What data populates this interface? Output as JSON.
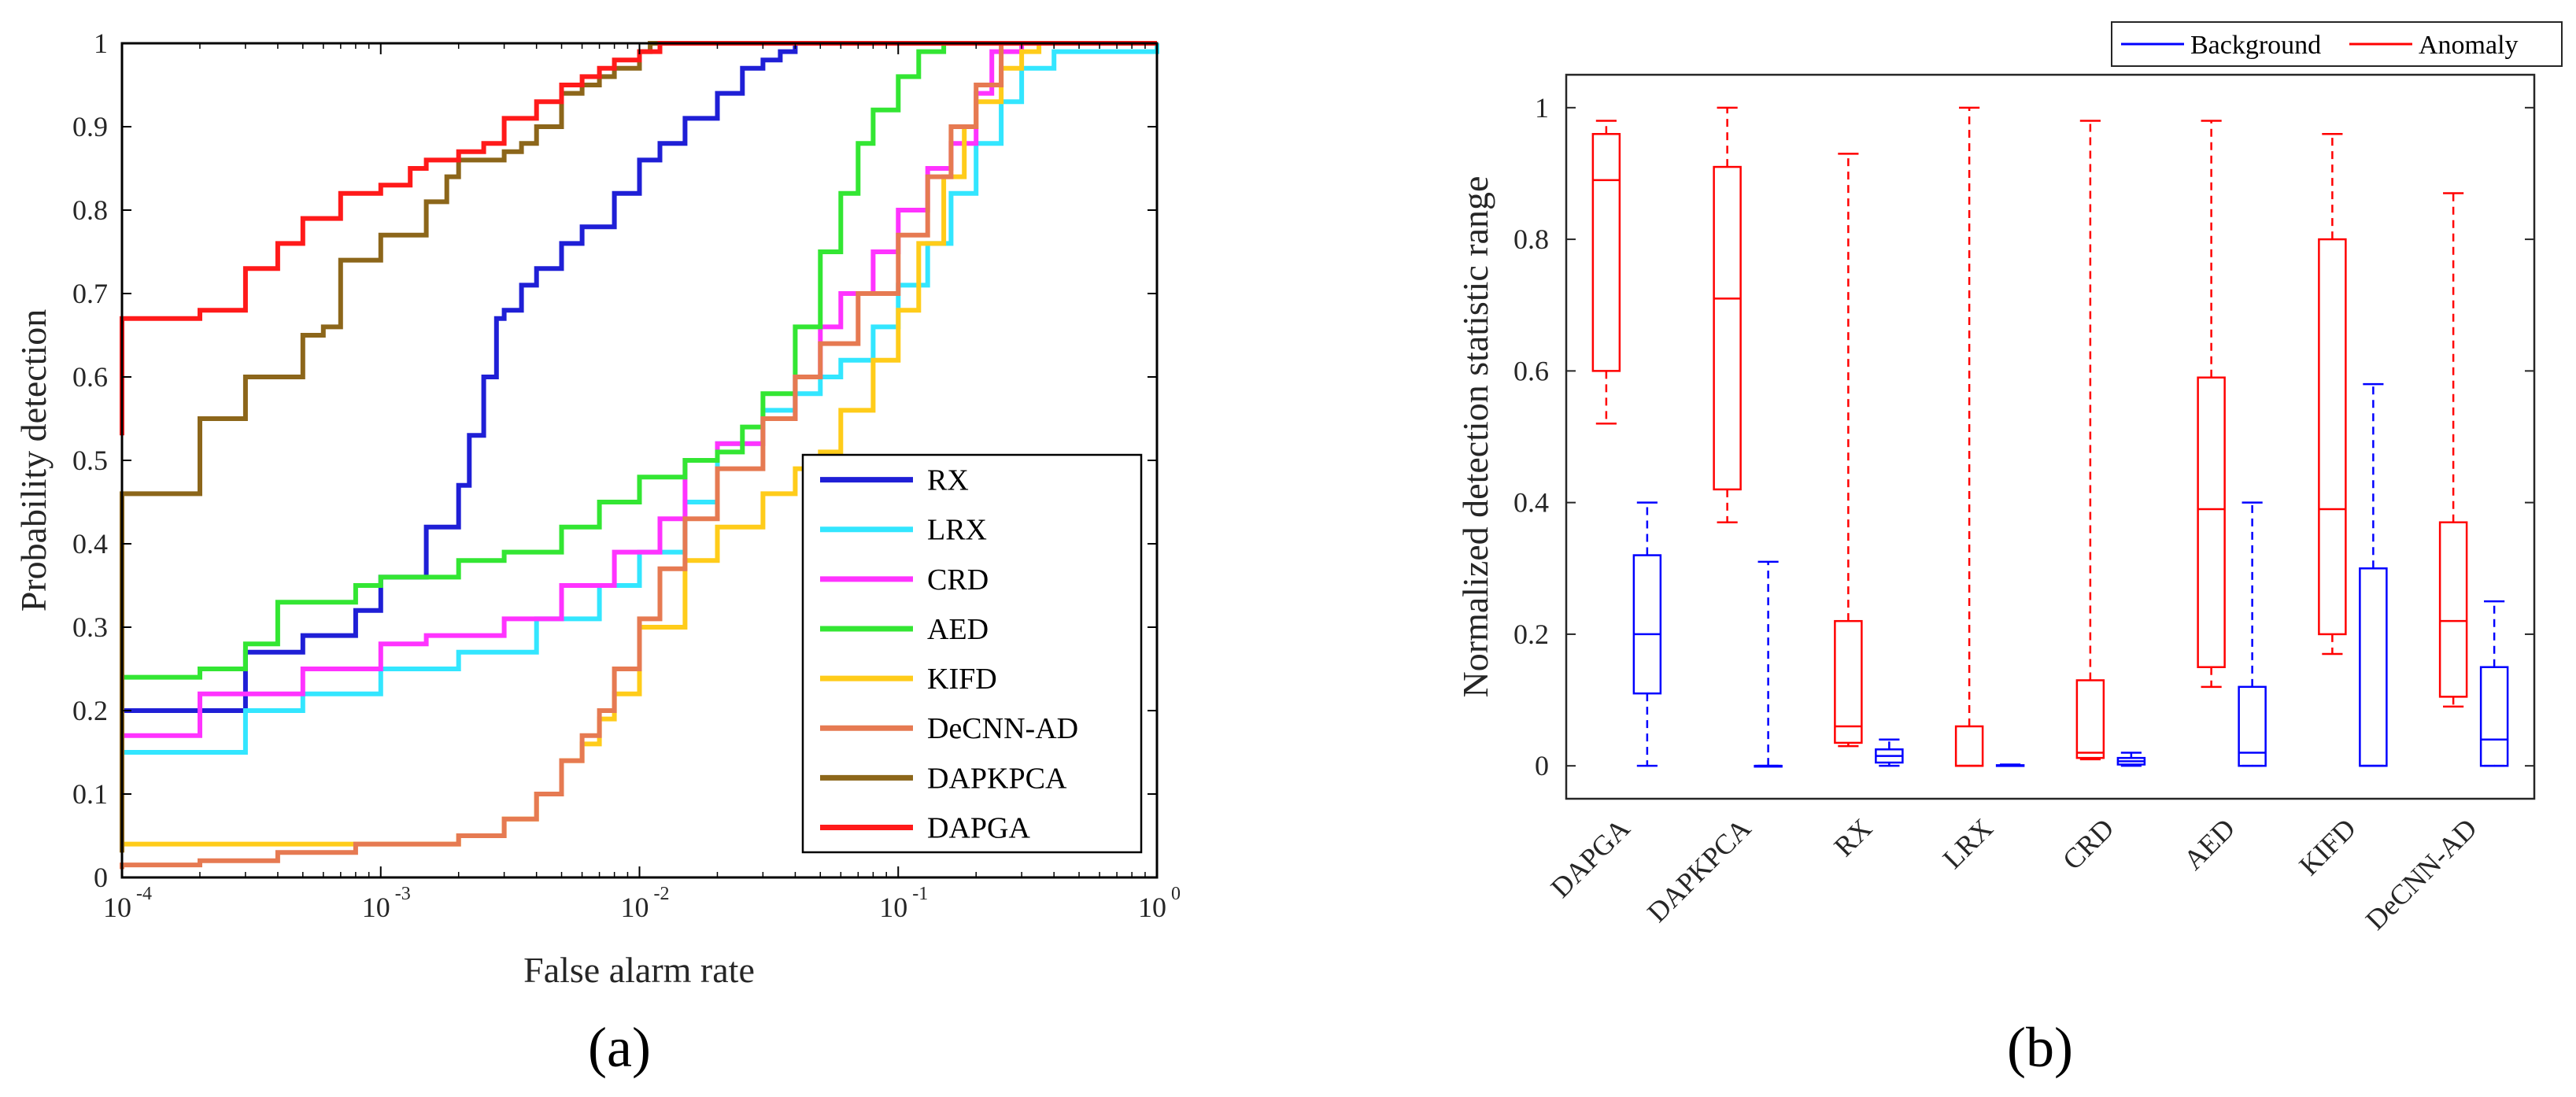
{
  "panels": {
    "a_label": "(a)",
    "b_label": "(b)"
  },
  "chart_data": [
    {
      "type": "line",
      "panel": "a",
      "xlabel": "False alarm rate",
      "ylabel": "Probability detection",
      "xscale": "log",
      "xlim": [
        0.0001,
        1
      ],
      "ylim": [
        0,
        1
      ],
      "xtick_labels": [
        "10",
        "10",
        "10",
        "10",
        "10"
      ],
      "xtick_exponents": [
        "-4",
        "-3",
        "-2",
        "-1",
        "0"
      ],
      "ytick_labels": [
        "0",
        "0.1",
        "0.2",
        "0.3",
        "0.4",
        "0.5",
        "0.6",
        "0.7",
        "0.8",
        "0.9",
        "1"
      ],
      "legend_position": "lower-right",
      "series": [
        {
          "name": "RX",
          "color": "#1f1fd6",
          "x": [
            0.0001,
            0.0001,
            0.0002,
            0.0003,
            0.0003,
            0.0005,
            0.0008,
            0.001,
            0.0015,
            0.002,
            0.0022,
            0.0025,
            0.0028,
            0.003,
            0.0035,
            0.004,
            0.005,
            0.006,
            0.008,
            0.01,
            0.012,
            0.015,
            0.02,
            0.025,
            0.03,
            0.035,
            0.04
          ],
          "y": [
            0.03,
            0.2,
            0.2,
            0.27,
            0.27,
            0.29,
            0.32,
            0.36,
            0.42,
            0.47,
            0.53,
            0.6,
            0.67,
            0.68,
            0.71,
            0.73,
            0.76,
            0.78,
            0.82,
            0.86,
            0.88,
            0.91,
            0.94,
            0.97,
            0.98,
            0.99,
            1.0
          ]
        },
        {
          "name": "LRX",
          "color": "#33e6ff",
          "x": [
            0.0001,
            0.0001,
            0.0003,
            0.0003,
            0.0005,
            0.001,
            0.002,
            0.004,
            0.007,
            0.01,
            0.015,
            0.02,
            0.03,
            0.04,
            0.05,
            0.06,
            0.08,
            0.1,
            0.13,
            0.16,
            0.2,
            0.25,
            0.3,
            0.4,
            0.5,
            0.8,
            1.0
          ],
          "y": [
            0.13,
            0.15,
            0.15,
            0.2,
            0.22,
            0.25,
            0.27,
            0.31,
            0.35,
            0.39,
            0.45,
            0.52,
            0.56,
            0.58,
            0.6,
            0.62,
            0.66,
            0.71,
            0.76,
            0.82,
            0.88,
            0.93,
            0.97,
            0.99,
            0.99,
            0.99,
            1.0
          ]
        },
        {
          "name": "CRD",
          "color": "#ff33ff",
          "x": [
            0.0001,
            0.0001,
            0.0002,
            0.0002,
            0.0005,
            0.001,
            0.0015,
            0.003,
            0.005,
            0.008,
            0.012,
            0.015,
            0.02,
            0.03,
            0.04,
            0.05,
            0.06,
            0.08,
            0.1,
            0.13,
            0.16,
            0.2,
            0.23,
            0.3,
            1.0
          ],
          "y": [
            0.15,
            0.17,
            0.17,
            0.22,
            0.25,
            0.28,
            0.29,
            0.31,
            0.35,
            0.39,
            0.43,
            0.5,
            0.52,
            0.55,
            0.6,
            0.66,
            0.7,
            0.75,
            0.8,
            0.85,
            0.88,
            0.94,
            0.99,
            1.0,
            1.0
          ]
        },
        {
          "name": "AED",
          "color": "#33e633",
          "x": [
            0.0001,
            0.0001,
            0.0002,
            0.0003,
            0.0003,
            0.0004,
            0.0004,
            0.0008,
            0.001,
            0.002,
            0.003,
            0.005,
            0.007,
            0.01,
            0.015,
            0.02,
            0.025,
            0.03,
            0.04,
            0.05,
            0.06,
            0.07,
            0.08,
            0.1,
            0.12,
            0.15,
            1.0
          ],
          "y": [
            0.2,
            0.24,
            0.25,
            0.25,
            0.28,
            0.28,
            0.33,
            0.35,
            0.36,
            0.38,
            0.39,
            0.42,
            0.45,
            0.48,
            0.5,
            0.51,
            0.54,
            0.58,
            0.66,
            0.75,
            0.82,
            0.88,
            0.92,
            0.96,
            0.99,
            1.0,
            1.0
          ]
        },
        {
          "name": "KIFD",
          "color": "#ffcc1a",
          "x": [
            0.0001,
            0.0001,
            0.001,
            0.002,
            0.003,
            0.004,
            0.005,
            0.006,
            0.007,
            0.008,
            0.01,
            0.015,
            0.02,
            0.03,
            0.04,
            0.05,
            0.06,
            0.08,
            0.1,
            0.12,
            0.15,
            0.18,
            0.2,
            0.25,
            0.3,
            0.35,
            1.0
          ],
          "y": [
            0.03,
            0.04,
            0.04,
            0.05,
            0.07,
            0.1,
            0.14,
            0.16,
            0.19,
            0.22,
            0.3,
            0.38,
            0.42,
            0.46,
            0.49,
            0.51,
            0.56,
            0.62,
            0.68,
            0.76,
            0.84,
            0.9,
            0.93,
            0.97,
            0.99,
            1.0,
            1.0
          ]
        },
        {
          "name": "DeCNN-AD",
          "color": "#e67a52",
          "x": [
            0.0001,
            0.0001,
            0.0002,
            0.0004,
            0.0008,
            0.001,
            0.002,
            0.003,
            0.004,
            0.005,
            0.006,
            0.007,
            0.008,
            0.01,
            0.012,
            0.015,
            0.02,
            0.03,
            0.04,
            0.05,
            0.07,
            0.1,
            0.13,
            0.16,
            0.2,
            0.25,
            1.0
          ],
          "y": [
            0.01,
            0.015,
            0.02,
            0.03,
            0.04,
            0.04,
            0.05,
            0.07,
            0.1,
            0.14,
            0.17,
            0.2,
            0.25,
            0.31,
            0.37,
            0.43,
            0.49,
            0.55,
            0.6,
            0.64,
            0.7,
            0.77,
            0.84,
            0.9,
            0.95,
            1.0,
            1.0
          ]
        },
        {
          "name": "DAPKPCA",
          "color": "#8c661a",
          "x": [
            0.0001,
            0.0001,
            0.0002,
            0.0002,
            0.0003,
            0.0005,
            0.0005,
            0.0006,
            0.0007,
            0.001,
            0.0015,
            0.0018,
            0.002,
            0.003,
            0.0035,
            0.004,
            0.005,
            0.006,
            0.007,
            0.008,
            0.01,
            0.011,
            0.012,
            1.0
          ],
          "y": [
            0.03,
            0.46,
            0.46,
            0.55,
            0.6,
            0.6,
            0.65,
            0.66,
            0.74,
            0.77,
            0.81,
            0.84,
            0.86,
            0.87,
            0.88,
            0.9,
            0.94,
            0.95,
            0.96,
            0.97,
            0.99,
            1.0,
            1.0,
            1.0
          ]
        },
        {
          "name": "DAPGA",
          "color": "#ff1a1a",
          "x": [
            0.0001,
            0.0001,
            0.0002,
            0.0003,
            0.0003,
            0.0004,
            0.0005,
            0.0007,
            0.001,
            0.0013,
            0.0015,
            0.002,
            0.0025,
            0.003,
            0.004,
            0.005,
            0.006,
            0.007,
            0.008,
            0.01,
            0.012,
            1.0
          ],
          "y": [
            0.53,
            0.67,
            0.68,
            0.7,
            0.73,
            0.76,
            0.79,
            0.82,
            0.83,
            0.85,
            0.86,
            0.87,
            0.88,
            0.91,
            0.93,
            0.95,
            0.96,
            0.97,
            0.98,
            0.99,
            1.0,
            1.0
          ]
        }
      ]
    },
    {
      "type": "box",
      "panel": "b",
      "xlabel": "",
      "ylabel": "Normalized detection statistic range",
      "ylim": [
        -0.05,
        1.05
      ],
      "ytick_labels": [
        "0",
        "0.2",
        "0.4",
        "0.6",
        "0.8",
        "1"
      ],
      "categories": [
        "DAPGA",
        "DAPKPCA",
        "RX",
        "LRX",
        "CRD",
        "AED",
        "KIFD",
        "DeCNN-AD"
      ],
      "legend_position": "top-right",
      "series": [
        {
          "name": "Anomaly",
          "color": "#ff0000",
          "boxes": [
            {
              "min": 0.52,
              "q1": 0.6,
              "median": 0.89,
              "q3": 0.96,
              "max": 0.98
            },
            {
              "min": 0.37,
              "q1": 0.42,
              "median": 0.71,
              "q3": 0.91,
              "max": 1.0
            },
            {
              "min": 0.03,
              "q1": 0.035,
              "median": 0.06,
              "q3": 0.22,
              "max": 0.93
            },
            {
              "min": 0.0,
              "q1": 0.0,
              "median": 0.0,
              "q3": 0.06,
              "max": 1.0
            },
            {
              "min": 0.01,
              "q1": 0.012,
              "median": 0.02,
              "q3": 0.13,
              "max": 0.98
            },
            {
              "min": 0.12,
              "q1": 0.15,
              "median": 0.39,
              "q3": 0.59,
              "max": 0.98
            },
            {
              "min": 0.17,
              "q1": 0.2,
              "median": 0.39,
              "q3": 0.8,
              "max": 0.96
            },
            {
              "min": 0.09,
              "q1": 0.105,
              "median": 0.22,
              "q3": 0.37,
              "max": 0.87
            }
          ]
        },
        {
          "name": "Background",
          "color": "#0000ff",
          "boxes": [
            {
              "min": 0.0,
              "q1": 0.11,
              "median": 0.2,
              "q3": 0.32,
              "max": 0.4
            },
            {
              "min": 0.0,
              "q1": 0.0,
              "median": 0.0,
              "q3": 0.0,
              "max": 0.31
            },
            {
              "min": 0.0,
              "q1": 0.005,
              "median": 0.015,
              "q3": 0.025,
              "max": 0.04
            },
            {
              "min": 0.0,
              "q1": 0.0,
              "median": 0.0,
              "q3": 0.001,
              "max": 0.002
            },
            {
              "min": 0.0,
              "q1": 0.002,
              "median": 0.007,
              "q3": 0.012,
              "max": 0.02
            },
            {
              "min": 0.0,
              "q1": 0.0,
              "median": 0.02,
              "q3": 0.12,
              "max": 0.4
            },
            {
              "min": 0.0,
              "q1": 0.0,
              "median": 0.0,
              "q3": 0.3,
              "max": 0.58
            },
            {
              "min": 0.0,
              "q1": 0.0,
              "median": 0.04,
              "q3": 0.15,
              "max": 0.25
            }
          ]
        }
      ]
    }
  ]
}
